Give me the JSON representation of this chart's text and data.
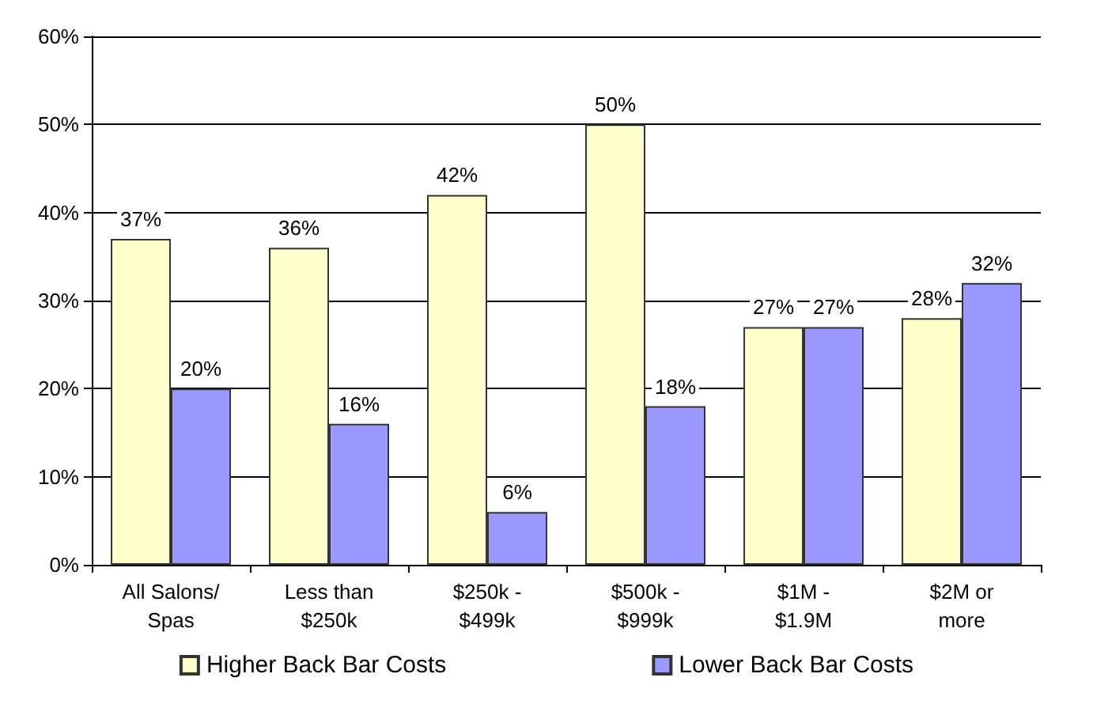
{
  "chart_data": {
    "type": "bar",
    "categories": [
      "All Salons/\nSpas",
      "Less than\n$250k",
      "$250k -\n$499k",
      "$500k -\n$999k",
      "$1M -\n$1.9M",
      "$2M or\nmore"
    ],
    "series": [
      {
        "name": "Higher Back Bar Costs",
        "color": "#ffffcc",
        "values": [
          37,
          36,
          42,
          50,
          27,
          28
        ],
        "value_labels": [
          "37%",
          "36%",
          "42%",
          "50%",
          "27%",
          "28%"
        ]
      },
      {
        "name": "Lower Back Bar Costs",
        "color": "#9999ff",
        "values": [
          20,
          16,
          6,
          18,
          27,
          32
        ],
        "value_labels": [
          "20%",
          "16%",
          "6%",
          "18%",
          "27%",
          "32%"
        ]
      }
    ],
    "ylim": [
      0,
      60
    ],
    "yticks": [
      {
        "value": 0,
        "label": "0%"
      },
      {
        "value": 10,
        "label": "10%"
      },
      {
        "value": 20,
        "label": "20%"
      },
      {
        "value": 30,
        "label": "30%"
      },
      {
        "value": 40,
        "label": "40%"
      },
      {
        "value": 50,
        "label": "50%"
      },
      {
        "value": 60,
        "label": "60%"
      }
    ],
    "grid": "y",
    "legend": "bottom"
  }
}
